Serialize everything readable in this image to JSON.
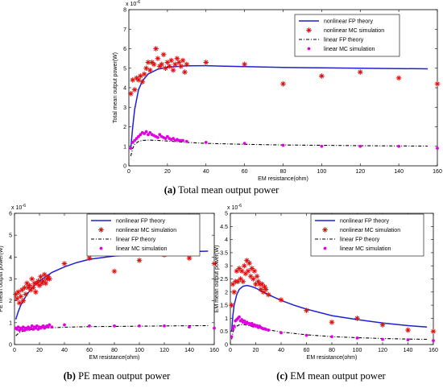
{
  "colors": {
    "nonlinear_fp": "#1f1fd6",
    "nonlinear_mc": "#e01010",
    "linear_fp": "#000000",
    "linear_mc": "#e000e0"
  },
  "legend_labels": {
    "nonlinear_fp": "nonlinear FP theory",
    "nonlinear_mc": "nonlinear MC simulation",
    "linear_fp": "linear FP theory",
    "linear_mc": "linear MC simulation"
  },
  "captions": {
    "a_letter": "(a)",
    "a_text": " Total mean output power",
    "b_letter": "(b)",
    "b_text": " PE mean output power",
    "c_letter": "(c)",
    "c_text": " EM mean output power"
  },
  "chart_data": [
    {
      "id": "a",
      "type": "line",
      "xlabel": "EM resistance(ohm)",
      "ylabel": "Total mean output power(W)",
      "exponent": "x 10",
      "exponent_power": "-6",
      "xlim": [
        0,
        160
      ],
      "ylim": [
        0,
        8
      ],
      "xticks": [
        0,
        20,
        40,
        60,
        80,
        100,
        120,
        140,
        160
      ],
      "yticks": [
        0,
        1,
        2,
        3,
        4,
        5,
        6,
        7,
        8
      ],
      "legend": "top-right",
      "series": [
        {
          "name": "nonlinear FP theory",
          "kind": "line",
          "style": "solid",
          "x": [
            1,
            2,
            3,
            5,
            7,
            10,
            15,
            20,
            30,
            40,
            50,
            60,
            80,
            100,
            120,
            140,
            155
          ],
          "y": [
            0.9,
            2.0,
            2.9,
            3.9,
            4.35,
            4.7,
            4.95,
            5.05,
            5.12,
            5.13,
            5.1,
            5.08,
            5.04,
            5.02,
            5.0,
            4.98,
            4.97
          ]
        },
        {
          "name": "nonlinear MC simulation",
          "kind": "star",
          "x": [
            1,
            2,
            3,
            4,
            5,
            6,
            7,
            8,
            9,
            10,
            11,
            12,
            13,
            14,
            15,
            16,
            17,
            18,
            19,
            20,
            21,
            22,
            23,
            24,
            25,
            26,
            27,
            28,
            29,
            30,
            40,
            60,
            80,
            100,
            120,
            140,
            160
          ],
          "y": [
            3.7,
            4.4,
            3.9,
            4.5,
            4.4,
            4.6,
            4.3,
            4.7,
            5.0,
            5.3,
            4.9,
            5.3,
            5.2,
            6.0,
            5.5,
            5.1,
            5.2,
            5.7,
            5.0,
            5.3,
            5.1,
            5.4,
            4.9,
            5.2,
            5.5,
            5.3,
            5.1,
            5.4,
            4.8,
            5.2,
            5.3,
            5.2,
            4.2,
            4.6,
            4.8,
            4.5,
            4.2
          ]
        },
        {
          "name": "linear FP theory",
          "kind": "line",
          "style": "dashdot",
          "x": [
            1,
            2,
            3,
            5,
            7,
            10,
            15,
            20,
            30,
            40,
            60,
            80,
            100,
            120,
            140,
            155
          ],
          "y": [
            0.5,
            0.9,
            1.1,
            1.25,
            1.3,
            1.32,
            1.3,
            1.27,
            1.2,
            1.15,
            1.1,
            1.07,
            1.05,
            1.03,
            1.02,
            1.01
          ]
        },
        {
          "name": "linear MC simulation",
          "kind": "dot",
          "x": [
            1,
            2,
            3,
            4,
            5,
            6,
            7,
            8,
            9,
            10,
            11,
            12,
            13,
            14,
            15,
            16,
            17,
            18,
            19,
            20,
            21,
            22,
            23,
            24,
            25,
            26,
            27,
            28,
            30,
            40,
            60,
            80,
            100,
            120,
            140,
            160
          ],
          "y": [
            0.9,
            1.2,
            1.3,
            1.4,
            1.5,
            1.6,
            1.7,
            1.65,
            1.75,
            1.6,
            1.7,
            1.6,
            1.55,
            1.5,
            1.45,
            1.6,
            1.5,
            1.45,
            1.4,
            1.5,
            1.4,
            1.35,
            1.4,
            1.3,
            1.35,
            1.3,
            1.3,
            1.3,
            1.25,
            1.2,
            1.15,
            1.05,
            1.0,
            1.0,
            1.0,
            0.9
          ]
        }
      ]
    },
    {
      "id": "b",
      "type": "line",
      "xlabel": "EM resistance(ohm)",
      "ylabel": "PE mean output power(W)",
      "exponent": "x 10",
      "exponent_power": "-6",
      "xlim": [
        0,
        160
      ],
      "ylim": [
        0,
        6
      ],
      "xticks": [
        0,
        20,
        40,
        60,
        80,
        100,
        120,
        140,
        160
      ],
      "yticks": [
        0,
        1,
        2,
        3,
        4,
        5,
        6
      ],
      "legend": "top-right",
      "series": [
        {
          "name": "nonlinear FP theory",
          "kind": "line",
          "style": "solid",
          "x": [
            1,
            3,
            5,
            10,
            15,
            20,
            30,
            40,
            50,
            60,
            80,
            100,
            120,
            140,
            155
          ],
          "y": [
            1.15,
            1.5,
            1.8,
            2.3,
            2.65,
            2.9,
            3.3,
            3.55,
            3.75,
            3.9,
            4.05,
            4.15,
            4.2,
            4.25,
            4.27
          ]
        },
        {
          "name": "nonlinear MC simulation",
          "kind": "star",
          "x": [
            1,
            2,
            3,
            4,
            5,
            6,
            7,
            8,
            9,
            10,
            11,
            12,
            13,
            14,
            15,
            16,
            17,
            18,
            19,
            20,
            21,
            22,
            23,
            24,
            25,
            26,
            27,
            28,
            40,
            60,
            80,
            100,
            120,
            140,
            160
          ],
          "y": [
            2.3,
            2.1,
            2.4,
            1.9,
            2.2,
            2.5,
            2.0,
            2.6,
            2.3,
            2.8,
            2.6,
            2.7,
            2.5,
            3.0,
            2.6,
            2.8,
            2.4,
            2.8,
            2.9,
            2.7,
            3.1,
            2.8,
            2.9,
            3.2,
            2.8,
            3.0,
            3.1,
            3.0,
            3.7,
            3.95,
            3.35,
            3.85,
            4.1,
            3.95,
            3.7
          ]
        },
        {
          "name": "linear FP theory",
          "kind": "line",
          "style": "dashdot",
          "x": [
            1,
            3,
            5,
            10,
            20,
            30,
            40,
            60,
            80,
            100,
            120,
            140,
            155
          ],
          "y": [
            0.4,
            0.5,
            0.58,
            0.66,
            0.73,
            0.77,
            0.79,
            0.82,
            0.83,
            0.84,
            0.85,
            0.86,
            0.86
          ]
        },
        {
          "name": "linear MC simulation",
          "kind": "dot",
          "x": [
            1,
            2,
            3,
            4,
            5,
            6,
            7,
            8,
            9,
            10,
            11,
            12,
            13,
            14,
            15,
            16,
            17,
            18,
            19,
            20,
            21,
            22,
            23,
            24,
            25,
            26,
            27,
            28,
            30,
            40,
            60,
            80,
            100,
            120,
            140,
            160
          ],
          "y": [
            0.75,
            0.7,
            0.8,
            0.65,
            0.75,
            0.7,
            0.8,
            0.65,
            0.75,
            0.7,
            0.8,
            0.7,
            0.75,
            0.85,
            0.7,
            0.8,
            0.75,
            0.85,
            0.7,
            0.8,
            0.75,
            0.8,
            0.85,
            0.75,
            0.8,
            0.85,
            0.8,
            0.9,
            0.8,
            0.9,
            0.85,
            0.85,
            0.85,
            0.85,
            0.8,
            0.75
          ]
        }
      ]
    },
    {
      "id": "c",
      "type": "line",
      "xlabel": "EM resistance(ohm)",
      "ylabel": "EM mean output power(W)",
      "exponent": "x 10",
      "exponent_power": "-6",
      "xlim": [
        0,
        160
      ],
      "ylim": [
        0,
        5
      ],
      "xticks": [
        0,
        20,
        40,
        60,
        80,
        100,
        120,
        140,
        160
      ],
      "yticks": [
        0,
        0.5,
        1,
        1.5,
        2,
        2.5,
        3,
        3.5,
        4,
        4.5,
        5
      ],
      "legend": "top-right",
      "series": [
        {
          "name": "nonlinear FP theory",
          "kind": "line",
          "style": "solid",
          "x": [
            1,
            2,
            3,
            5,
            7,
            10,
            13,
            16,
            20,
            25,
            30,
            40,
            50,
            60,
            80,
            100,
            120,
            140,
            155
          ],
          "y": [
            0.5,
            1.1,
            1.5,
            1.9,
            2.1,
            2.22,
            2.25,
            2.22,
            2.15,
            2.02,
            1.9,
            1.68,
            1.5,
            1.35,
            1.1,
            0.95,
            0.82,
            0.72,
            0.67
          ]
        },
        {
          "name": "nonlinear MC simulation",
          "kind": "star",
          "x": [
            1,
            2,
            3,
            4,
            5,
            6,
            7,
            8,
            9,
            10,
            11,
            12,
            13,
            14,
            15,
            16,
            17,
            18,
            19,
            20,
            21,
            22,
            23,
            24,
            25,
            26,
            27,
            28,
            30,
            40,
            60,
            80,
            100,
            120,
            140,
            160
          ],
          "y": [
            1.5,
            2.3,
            2.0,
            2.4,
            2.8,
            2.4,
            2.9,
            2.5,
            2.8,
            2.4,
            3.0,
            2.7,
            3.2,
            2.8,
            3.1,
            2.6,
            2.9,
            2.5,
            2.8,
            2.3,
            2.6,
            2.4,
            2.3,
            2.1,
            2.3,
            2.0,
            2.2,
            2.1,
            1.9,
            1.7,
            1.3,
            0.85,
            1.0,
            0.75,
            0.55,
            0.5
          ]
        },
        {
          "name": "linear FP theory",
          "kind": "line",
          "style": "dashdot",
          "x": [
            1,
            2,
            3,
            5,
            7,
            10,
            13,
            16,
            20,
            30,
            40,
            60,
            80,
            100,
            120,
            140,
            155
          ],
          "y": [
            0.2,
            0.45,
            0.6,
            0.7,
            0.75,
            0.76,
            0.74,
            0.7,
            0.66,
            0.56,
            0.48,
            0.37,
            0.3,
            0.26,
            0.23,
            0.21,
            0.2
          ]
        },
        {
          "name": "linear MC simulation",
          "kind": "dot",
          "x": [
            1,
            2,
            3,
            4,
            5,
            6,
            7,
            8,
            9,
            10,
            11,
            12,
            13,
            14,
            15,
            16,
            17,
            18,
            19,
            20,
            21,
            22,
            23,
            24,
            25,
            26,
            27,
            28,
            30,
            40,
            60,
            80,
            100,
            120,
            140,
            160
          ],
          "y": [
            0.3,
            0.6,
            0.7,
            0.9,
            0.95,
            1.0,
            1.05,
            0.9,
            0.95,
            0.85,
            0.9,
            0.8,
            0.85,
            0.8,
            0.8,
            0.75,
            0.8,
            0.7,
            0.75,
            0.7,
            0.72,
            0.65,
            0.7,
            0.65,
            0.62,
            0.6,
            0.6,
            0.58,
            0.55,
            0.45,
            0.35,
            0.3,
            0.25,
            0.2,
            0.18,
            0.15
          ]
        }
      ]
    }
  ]
}
